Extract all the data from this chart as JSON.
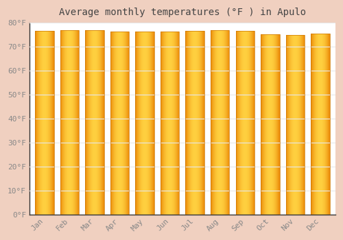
{
  "title": "Average monthly temperatures (°F ) in Apulo",
  "months": [
    "Jan",
    "Feb",
    "Mar",
    "Apr",
    "May",
    "Jun",
    "Jul",
    "Aug",
    "Sep",
    "Oct",
    "Nov",
    "Dec"
  ],
  "values": [
    76.5,
    77.0,
    76.8,
    76.3,
    76.3,
    76.3,
    76.5,
    77.0,
    76.5,
    75.2,
    75.0,
    75.5
  ],
  "bar_color_center": "#FFD040",
  "bar_color_edge": "#E88000",
  "background_color": "#f0d0c0",
  "plot_bg_color": "#ffffff",
  "ylim": [
    0,
    80
  ],
  "yticks": [
    0,
    10,
    20,
    30,
    40,
    50,
    60,
    70,
    80
  ],
  "ytick_labels": [
    "0°F",
    "10°F",
    "20°F",
    "30°F",
    "40°F",
    "50°F",
    "60°F",
    "70°F",
    "80°F"
  ],
  "grid_color": "#e0e0e0",
  "title_fontsize": 10,
  "tick_fontsize": 8,
  "bar_width": 0.75,
  "n_gradient_cols": 100
}
